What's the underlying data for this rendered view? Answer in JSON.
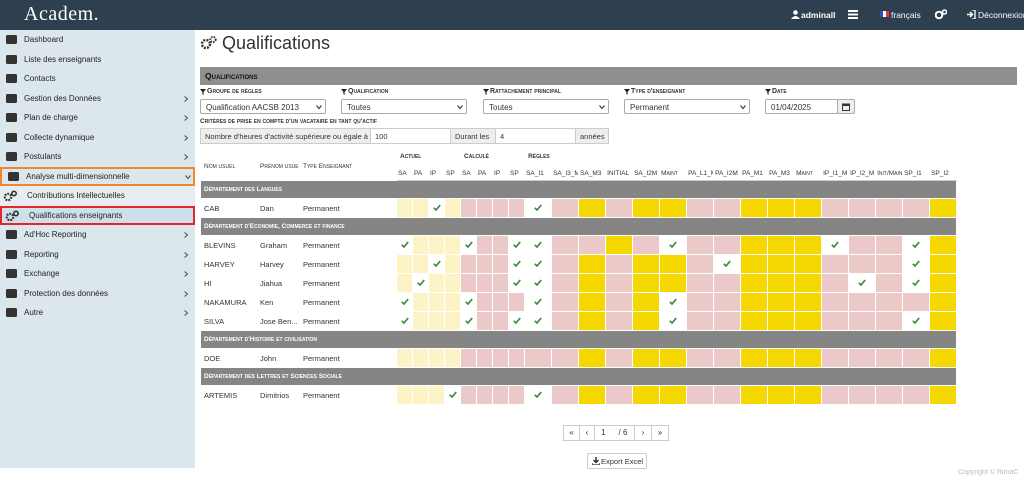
{
  "header": {
    "logo": "Academ.",
    "user": "adminall",
    "language": "français",
    "logout": "Déconnexion"
  },
  "sidebar": {
    "items": [
      {
        "label": "Dashboard"
      },
      {
        "label": "Liste des enseignants"
      },
      {
        "label": "Contacts"
      },
      {
        "label": "Gestion des Données",
        "submenu": true
      },
      {
        "label": "Plan de charge",
        "submenu": true
      },
      {
        "label": "Collecte dynamique",
        "submenu": true
      },
      {
        "label": "Postulants",
        "submenu": true
      },
      {
        "label": "Analyse multi-dimensionnelle",
        "submenu": true,
        "expanded": true,
        "outline": "#f0862d"
      },
      {
        "label": "Contributions Intellectuelles",
        "child": true
      },
      {
        "label": "Qualifications enseignants",
        "child": true,
        "active": true,
        "outline": "#e3262b"
      },
      {
        "label": "Ad'Hoc Reporting",
        "submenu": true
      },
      {
        "label": "Reporting",
        "submenu": true
      },
      {
        "label": "Exchange",
        "submenu": true
      },
      {
        "label": "Protection des données",
        "submenu": true
      },
      {
        "label": "Autre",
        "submenu": true
      }
    ]
  },
  "page": {
    "title": "Qualifications",
    "panel_title": "Qualifications"
  },
  "filters": [
    {
      "label": "Groupe de règles",
      "value": "Qualification AACSB 2013"
    },
    {
      "label": "Qualification",
      "value": "Toutes"
    },
    {
      "label": "Rattachement principal",
      "value": "Toutes"
    },
    {
      "label": "Type d'enseignant",
      "value": "Permanent"
    },
    {
      "label": "Date",
      "value": "01/04/2025",
      "input": "date"
    }
  ],
  "criteria": {
    "title": "Critères de prise en compte d'un vacataire en tant qu'actif",
    "hours_label": "Nombre d'heures d'activité supérieure ou égale à",
    "hours": 100,
    "during_label": "Durant les",
    "years": 4,
    "years_label": "années"
  },
  "table": {
    "columns": {
      "nom": "Nom usuel",
      "prenom": "Prénom usuel",
      "type": "Type Enseignant"
    },
    "sections": [
      {
        "name": "Actuel",
        "columns": [
          "SA",
          "PA",
          "IP",
          "SP"
        ]
      },
      {
        "name": "Calculé",
        "columns": [
          "SA",
          "PA",
          "IP",
          "SP"
        ]
      },
      {
        "name": "Règles",
        "columns": [
          "SA_I1",
          "SA_I3_M",
          "SA_M3",
          "INITIAL",
          "SA_I2M",
          "Maint",
          "PA_L1_M",
          "PA_I2M",
          "PA_M1",
          "PA_M3",
          "Maint",
          "IP_I1_M",
          "IP_I2_M",
          "Init/Main",
          "SP_I1",
          "SP_I2"
        ]
      }
    ],
    "cell_styles": {
      "l": {
        "fill": "#fcf4c6"
      },
      "p": {
        "fill": "#ecc9c9"
      },
      "y": {
        "fill": "#f4d800"
      },
      "c": {
        "fill": "#ffffff",
        "check": true
      }
    },
    "groups": [
      {
        "name": "Département des Langues",
        "rows": [
          {
            "nom": "CAB",
            "prenom": "Dan",
            "type": "Permanent",
            "cells": "llclppppcpypyyppyyyppppy"
          }
        ]
      },
      {
        "name": "Département d'Economie, Commerce et finance",
        "rows": [
          {
            "nom": "BLEVINS",
            "prenom": "Graham",
            "type": "Permanent",
            "cells": "clllcppccppypcppyyycppcy"
          },
          {
            "nom": "HARVEY",
            "prenom": "Harvey",
            "type": "Permanent",
            "cells": "llclpppccpypyypcyyypppcy"
          },
          {
            "nom": "HI",
            "prenom": "Jiahua",
            "type": "Permanent",
            "cells": "lcllpppccpypyyppyyypcpcy"
          },
          {
            "nom": "NAKAMURA",
            "prenom": "Ken",
            "type": "Permanent",
            "cells": "clllcpppcpypycppyyyppppy"
          },
          {
            "nom": "SILVA",
            "prenom": "Jose Ben...",
            "type": "Permanent",
            "cells": "clllcppccpypycppyyypppcy"
          }
        ]
      },
      {
        "name": "Département d'Histoire et civilisation",
        "rows": [
          {
            "nom": "DOE",
            "prenom": "John",
            "type": "Permanent",
            "cells": "llllppppppypyyppyyyppppy"
          }
        ]
      },
      {
        "name": "Département des Lettres et Sciences Sociale",
        "rows": [
          {
            "nom": "ARTEMIS",
            "prenom": "Dimitrios",
            "type": "Permanent",
            "cells": "lllcppppcpypyyppyyyppppy"
          }
        ]
      }
    ]
  },
  "pagination": {
    "first": "«",
    "prev": "‹",
    "page": 1,
    "of": "/ 6",
    "next": "›",
    "last": "»"
  },
  "export": "Export Excel",
  "footer": "Copyright © RimaC"
}
